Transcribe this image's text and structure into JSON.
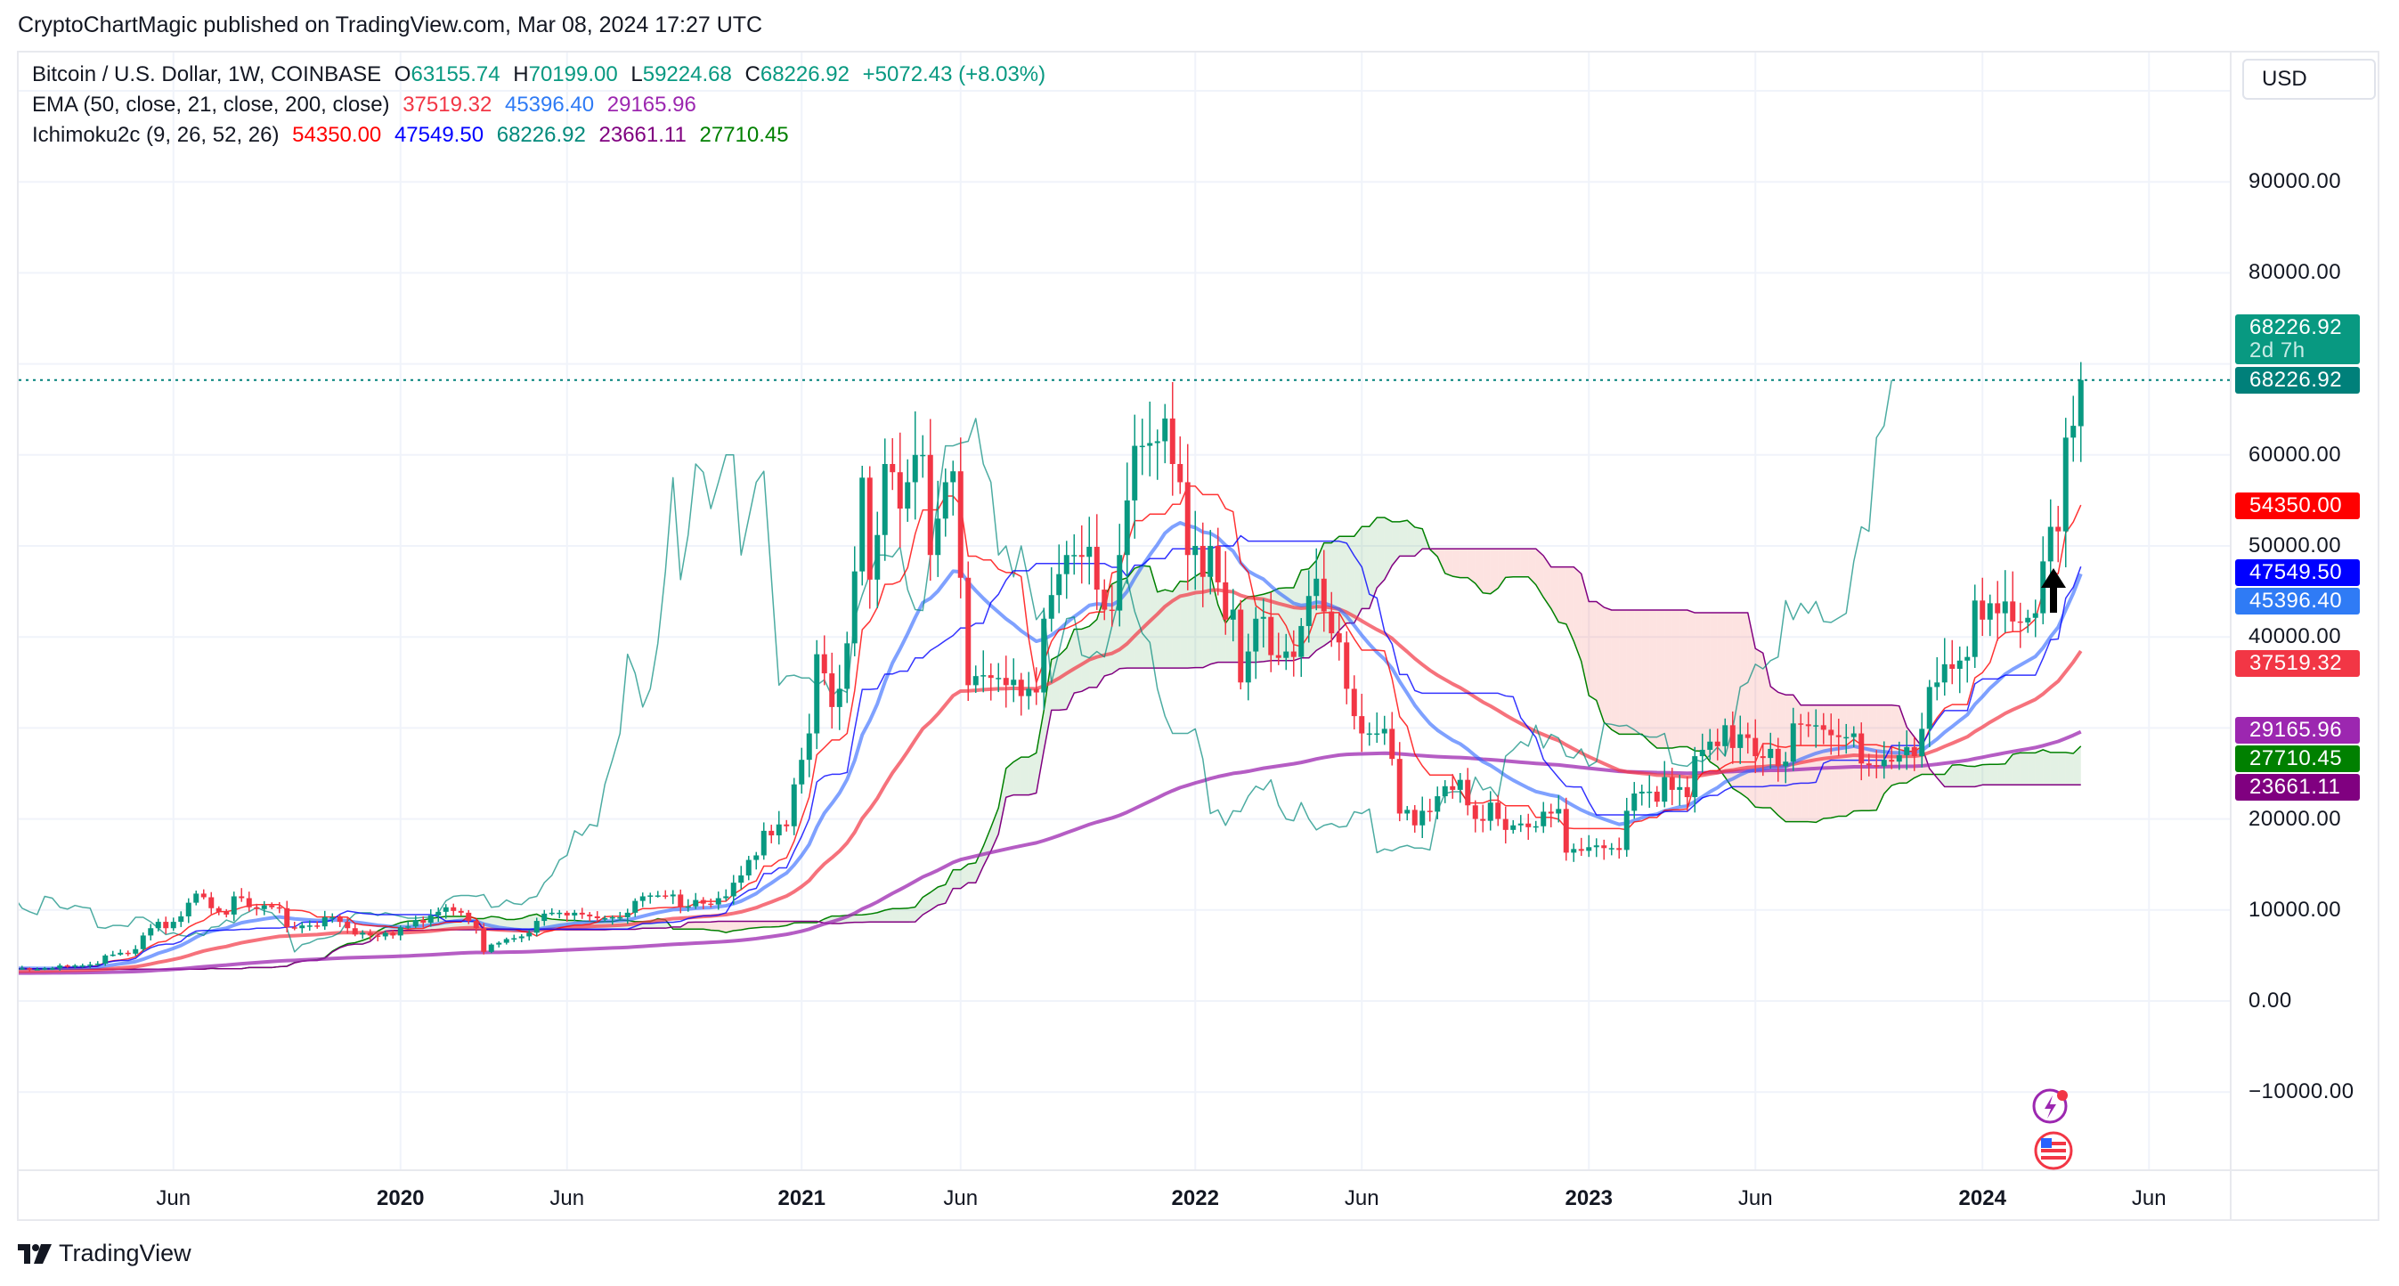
{
  "header": {
    "published": "CryptoChartMagic published on TradingView.com, Mar 08, 2024 17:27 UTC"
  },
  "legend": {
    "symbol": "Bitcoin / U.S. Dollar, 1W, COINBASE",
    "o_label": "O",
    "o": "63155.74",
    "h_label": "H",
    "h": "70199.00",
    "l_label": "L",
    "l": "59224.68",
    "c_label": "C",
    "c": "68226.92",
    "change": "+5072.43 (+8.03%)",
    "ema_title": "EMA (50, close, 21, close, 200, close)",
    "ema_values": [
      "37519.32",
      "45396.40",
      "29165.96"
    ],
    "ichi_title": "Ichimoku2c (9, 26, 52, 26)",
    "ichi_values": [
      "54350.00",
      "47549.50",
      "68226.92",
      "23661.11",
      "27710.45"
    ]
  },
  "currency_button": "USD",
  "price_tags": [
    {
      "value": "68226.92",
      "sub": "2d 7h",
      "color": "#089981",
      "price": 68226.92
    },
    {
      "value": "68226.92",
      "color": "#00807a",
      "price": 68226.92
    },
    {
      "value": "54350.00",
      "color": "#ff0000",
      "price": 54350
    },
    {
      "value": "47549.50",
      "color": "#0000ff",
      "price": 47549.5
    },
    {
      "value": "45396.40",
      "color": "#2f7bf5",
      "price": 45396.4
    },
    {
      "value": "37519.32",
      "color": "#f23645",
      "price": 37519.32
    },
    {
      "value": "29165.96",
      "color": "#9c27b0",
      "price": 29165.96
    },
    {
      "value": "27710.45",
      "color": "#008000",
      "price": 27710.45
    },
    {
      "value": "23661.11",
      "color": "#800080",
      "price": 23661.11
    }
  ],
  "logo": {
    "text": "TradingView"
  },
  "colors": {
    "up": "#089981",
    "down": "#f23645",
    "ema50": "#f23645",
    "ema21": "#2962ff",
    "ema200": "#9c27b0",
    "conversion": "#ff0000",
    "base": "#0000ff",
    "lagging": "#00897b",
    "leadA": "#008000",
    "leadB": "#800080"
  },
  "chart_data": {
    "type": "candlestick",
    "title": "Bitcoin / U.S. Dollar, 1W, COINBASE",
    "ylabel": "USD",
    "ylim": [
      -17000,
      106000
    ],
    "y_ticks": [
      "90000.00",
      "80000.00",
      "60000.00",
      "50000.00",
      "40000.00",
      "20000.00",
      "10000.00",
      "0.00",
      "−10000.00"
    ],
    "y_tick_values": [
      90000,
      80000,
      60000,
      50000,
      40000,
      20000,
      10000,
      0,
      -10000
    ],
    "x_ticks": [
      {
        "label": "Jun",
        "week": 21,
        "year": false
      },
      {
        "label": "2020",
        "week": 51,
        "year": true
      },
      {
        "label": "Jun",
        "week": 73,
        "year": false
      },
      {
        "label": "2021",
        "week": 104,
        "year": true
      },
      {
        "label": "Jun",
        "week": 125,
        "year": false
      },
      {
        "label": "2022",
        "week": 156,
        "year": true
      },
      {
        "label": "Jun",
        "week": 178,
        "year": false
      },
      {
        "label": "2023",
        "week": 208,
        "year": true
      },
      {
        "label": "Jun",
        "week": 230,
        "year": false
      },
      {
        "label": "2024",
        "week": 260,
        "year": true
      },
      {
        "label": "Jun",
        "week": 282,
        "year": false
      }
    ],
    "start_week": "2019-01-07",
    "last_bar": {
      "open": 63155.74,
      "high": 70199.0,
      "low": 59224.68,
      "close": 68226.92
    },
    "weekly_close_kusd": [
      3.6,
      3.6,
      3.5,
      3.5,
      3.6,
      3.6,
      3.9,
      3.8,
      3.9,
      3.9,
      4.0,
      4.1,
      5.0,
      5.1,
      5.3,
      5.2,
      5.7,
      7.2,
      8.0,
      8.7,
      8.0,
      8.7,
      9.3,
      10.8,
      11.8,
      11.4,
      10.2,
      9.8,
      9.5,
      11.5,
      11.3,
      10.3,
      10.1,
      10.5,
      10.3,
      10.2,
      8.1,
      8.0,
      8.3,
      8.3,
      8.2,
      9.2,
      9.2,
      8.7,
      8.0,
      7.3,
      7.5,
      7.2,
      7.1,
      7.5,
      7.2,
      8.1,
      8.2,
      8.9,
      8.6,
      9.4,
      9.8,
      10.3,
      9.9,
      9.7,
      8.8,
      8.0,
      5.4,
      6.2,
      6.4,
      6.8,
      6.9,
      7.1,
      7.5,
      8.8,
      9.6,
      9.7,
      9.7,
      9.4,
      9.7,
      9.5,
      9.3,
      9.1,
      9.1,
      9.2,
      9.2,
      9.7,
      11.0,
      11.5,
      11.6,
      11.6,
      11.5,
      11.7,
      10.3,
      10.4,
      11.1,
      10.7,
      10.6,
      11.3,
      11.5,
      13.0,
      13.8,
      15.5,
      16.0,
      18.7,
      18.2,
      19.4,
      19.2,
      23.8,
      26.5,
      29.4,
      38.1,
      36.0,
      32.3,
      34.3,
      39.3,
      47.2,
      57.5,
      46.3,
      51.2,
      59.0,
      58.1,
      54.1,
      57.0,
      60.0,
      60.0,
      49.0,
      53.0,
      57.0,
      58.2,
      46.5,
      34.7,
      35.7,
      35.8,
      35.5,
      35.5,
      34.7,
      35.3,
      33.5,
      34.3,
      33.9,
      42.0,
      44.6,
      46.9,
      49.0,
      49.0,
      48.8,
      49.9,
      45.2,
      43.0,
      42.9,
      49.0,
      55.0,
      61.0,
      61.0,
      61.3,
      61.5,
      64.0,
      59.0,
      57.0,
      49.0,
      50.0,
      46.6,
      50.0,
      46.0,
      41.9,
      43.0,
      35.0,
      38.4,
      42.0,
      42.2,
      38.0,
      37.7,
      38.4,
      37.8,
      41.2,
      44.5,
      46.4,
      42.8,
      40.4,
      39.4,
      34.3,
      31.3,
      29.4,
      29.4,
      29.4,
      29.9,
      26.6,
      20.6,
      21.0,
      19.3,
      20.9,
      20.8,
      22.5,
      23.6,
      23.2,
      24.3,
      21.5,
      20.0,
      19.8,
      21.8,
      20.0,
      18.8,
      19.3,
      19.5,
      19.1,
      19.2,
      20.8,
      20.6,
      21.1,
      16.3,
      16.7,
      16.5,
      16.9,
      17.1,
      16.8,
      16.8,
      16.6,
      20.9,
      22.8,
      23.0,
      23.0,
      21.9,
      24.6,
      23.2,
      23.5,
      22.4,
      26.9,
      27.6,
      28.5,
      28.0,
      30.3,
      27.8,
      29.3,
      28.9,
      26.9,
      26.7,
      27.7,
      25.8,
      26.3,
      30.5,
      30.4,
      30.2,
      30.3,
      29.8,
      29.2,
      29.0,
      29.0,
      29.4,
      26.1,
      25.9,
      25.8,
      26.5,
      26.3,
      27.0,
      27.9,
      26.9,
      29.9,
      34.5,
      35.0,
      37.0,
      36.5,
      37.4,
      37.8,
      44.0,
      41.9,
      43.7,
      42.6,
      43.9,
      41.7,
      41.6,
      42.1,
      42.6,
      48.3,
      52.1,
      51.6,
      61.9,
      63.2,
      68.23
    ],
    "indicators": [
      "EMA 50",
      "EMA 21",
      "EMA 200",
      "Ichimoku conversion 9",
      "Ichimoku base 26",
      "Lagging span",
      "Lead A",
      "Lead B"
    ]
  }
}
